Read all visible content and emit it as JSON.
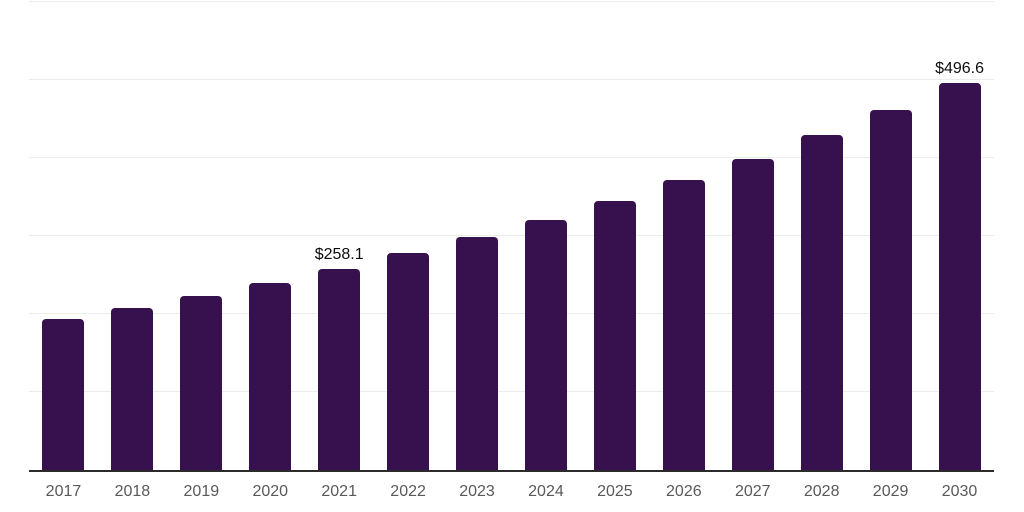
{
  "chart_data": {
    "type": "bar",
    "title": "",
    "xlabel": "",
    "ylabel": "",
    "legend": "none",
    "grid": "horizontal",
    "categories": [
      "2017",
      "2018",
      "2019",
      "2020",
      "2021",
      "2022",
      "2023",
      "2024",
      "2025",
      "2026",
      "2027",
      "2028",
      "2029",
      "2030"
    ],
    "values": [
      193.2,
      207.7,
      223.4,
      240.2,
      258.1,
      277.6,
      298.5,
      321.1,
      345.3,
      371.3,
      399.3,
      429.5,
      461.9,
      496.6
    ],
    "value_labels": [
      null,
      null,
      null,
      null,
      "$258.1",
      null,
      null,
      null,
      null,
      null,
      null,
      null,
      null,
      "$496.6"
    ],
    "ylim": [
      0,
      600
    ],
    "grid_step": 100,
    "colors": {
      "bar": "#36114e",
      "grid": "#ececec",
      "axis": "#2b2b2b",
      "tick_label": "#595959",
      "value_label": "#0d0d0d",
      "background": "#ffffff"
    }
  }
}
